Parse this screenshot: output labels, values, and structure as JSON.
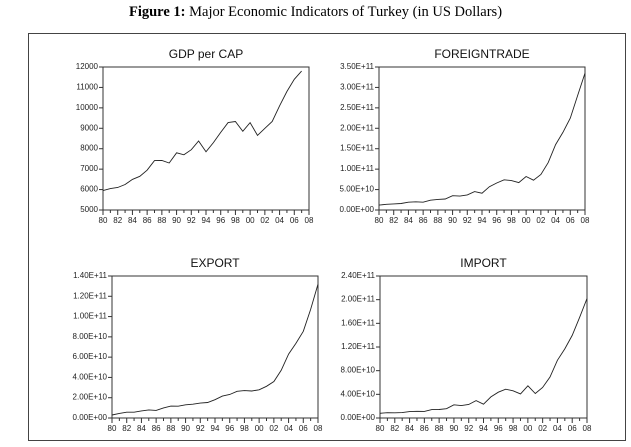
{
  "figure": {
    "label": "Figure 1:",
    "title": " Major Economic Indicators of Turkey (in US Dollars)"
  },
  "chart_data": [
    {
      "type": "line",
      "title": "GDP per CAP",
      "x": [
        1980,
        1981,
        1982,
        1983,
        1984,
        1985,
        1986,
        1987,
        1988,
        1989,
        1990,
        1991,
        1992,
        1993,
        1994,
        1995,
        1996,
        1997,
        1998,
        1999,
        2000,
        2001,
        2002,
        2003,
        2004,
        2005,
        2006,
        2007
      ],
      "values": [
        5950,
        6050,
        6100,
        6250,
        6500,
        6650,
        6950,
        7420,
        7430,
        7300,
        7800,
        7700,
        7950,
        8380,
        7850,
        8300,
        8800,
        9280,
        9330,
        8850,
        9280,
        8650,
        9000,
        9330,
        10100,
        10800,
        11400,
        11800
      ],
      "xlim": [
        1980,
        2008
      ],
      "ylim": [
        5000,
        12000
      ],
      "yticks": [
        5000,
        6000,
        7000,
        8000,
        9000,
        10000,
        11000,
        12000
      ],
      "ytick_labels": [
        "5000",
        "6000",
        "7000",
        "8000",
        "9000",
        "10000",
        "11000",
        "12000"
      ],
      "xtick_labels": [
        "80",
        "82",
        "84",
        "86",
        "88",
        "90",
        "92",
        "94",
        "96",
        "98",
        "00",
        "02",
        "04",
        "06",
        "08"
      ],
      "grid": false
    },
    {
      "type": "line",
      "title": "FOREIGNTRADE",
      "x": [
        1980,
        1981,
        1982,
        1983,
        1984,
        1985,
        1986,
        1987,
        1988,
        1989,
        1990,
        1991,
        1992,
        1993,
        1994,
        1995,
        1996,
        1997,
        1998,
        1999,
        2000,
        2001,
        2002,
        2003,
        2004,
        2005,
        2006,
        2007,
        2008
      ],
      "values": [
        12000000000.0,
        14000000000.0,
        15000000000.0,
        16000000000.0,
        19000000000.0,
        20000000000.0,
        19000000000.0,
        24000000000.0,
        26000000000.0,
        27000000000.0,
        35000000000.0,
        34000000000.0,
        37000000000.0,
        45000000000.0,
        41000000000.0,
        57000000000.0,
        66000000000.0,
        74000000000.0,
        72000000000.0,
        67000000000.0,
        82000000000.0,
        73000000000.0,
        87000000000.0,
        116000000000.0,
        160000000000.0,
        190000000000.0,
        225000000000.0,
        280000000000.0,
        335000000000.0
      ],
      "xlim": [
        1980,
        2008
      ],
      "ylim": [
        0,
        350000000000.0
      ],
      "yticks": [
        0,
        50000000000.0,
        100000000000.0,
        150000000000.0,
        200000000000.0,
        250000000000.0,
        300000000000.0,
        350000000000.0
      ],
      "ytick_labels": [
        "0.00E+00",
        "5.00E+10",
        "1.00E+11",
        "1.50E+11",
        "2.00E+11",
        "2.50E+11",
        "3.00E+11",
        "3.50E+11"
      ],
      "xtick_labels": [
        "80",
        "82",
        "84",
        "86",
        "88",
        "90",
        "92",
        "94",
        "96",
        "98",
        "00",
        "02",
        "04",
        "06",
        "08"
      ],
      "grid": false
    },
    {
      "type": "line",
      "title": "EXPORT",
      "x": [
        1980,
        1981,
        1982,
        1983,
        1984,
        1985,
        1986,
        1987,
        1988,
        1989,
        1990,
        1991,
        1992,
        1993,
        1994,
        1995,
        1996,
        1997,
        1998,
        1999,
        2000,
        2001,
        2002,
        2003,
        2004,
        2005,
        2006,
        2007,
        2008
      ],
      "values": [
        3000000000.0,
        4500000000.0,
        5700000000.0,
        5700000000.0,
        7000000000.0,
        8000000000.0,
        7500000000.0,
        10000000000.0,
        11700000000.0,
        11600000000.0,
        13000000000.0,
        13600000000.0,
        14700000000.0,
        15300000000.0,
        18000000000.0,
        21600000000.0,
        23200000000.0,
        26300000000.0,
        27000000000.0,
        26600000000.0,
        27800000000.0,
        31300000000.0,
        36000000000.0,
        47000000000.0,
        63000000000.0,
        73500000000.0,
        85500000000.0,
        107000000000.0,
        132000000000.0
      ],
      "xlim": [
        1980,
        2008
      ],
      "ylim": [
        0,
        140000000000.0
      ],
      "yticks": [
        0,
        20000000000.0,
        40000000000.0,
        60000000000.0,
        80000000000.0,
        100000000000.0,
        120000000000.0,
        140000000000.0
      ],
      "ytick_labels": [
        "0.00E+00",
        "2.00E+10",
        "4.00E+10",
        "6.00E+10",
        "8.00E+10",
        "1.00E+11",
        "1.20E+11",
        "1.40E+11"
      ],
      "xtick_labels": [
        "80",
        "82",
        "84",
        "86",
        "88",
        "90",
        "92",
        "94",
        "96",
        "98",
        "00",
        "02",
        "04",
        "06",
        "08"
      ],
      "grid": false
    },
    {
      "type": "line",
      "title": "IMPORT",
      "x": [
        1980,
        1981,
        1982,
        1983,
        1984,
        1985,
        1986,
        1987,
        1988,
        1989,
        1990,
        1991,
        1992,
        1993,
        1994,
        1995,
        1996,
        1997,
        1998,
        1999,
        2000,
        2001,
        2002,
        2003,
        2004,
        2005,
        2006,
        2007,
        2008
      ],
      "values": [
        7900000000.0,
        8900000000.0,
        8800000000.0,
        9200000000.0,
        10800000000.0,
        11300000000.0,
        11100000000.0,
        14200000000.0,
        14300000000.0,
        15800000000.0,
        22300000000.0,
        21000000000.0,
        22900000000.0,
        29400000000.0,
        23300000000.0,
        35700000000.0,
        43600000000.0,
        48600000000.0,
        45900000000.0,
        40700000000.0,
        54500000000.0,
        41400000000.0,
        51600000000.0,
        69300000000.0,
        97500000000.0,
        116800000000.0,
        139600000000.0,
        170000000000.0,
        202000000000.0
      ],
      "xlim": [
        1980,
        2008
      ],
      "ylim": [
        0,
        240000000000.0
      ],
      "yticks": [
        0,
        40000000000.0,
        80000000000.0,
        120000000000.0,
        160000000000.0,
        200000000000.0,
        240000000000.0
      ],
      "ytick_labels": [
        "0.00E+00",
        "4.00E+10",
        "8.00E+10",
        "1.20E+11",
        "1.60E+11",
        "2.00E+11",
        "2.40E+11"
      ],
      "xtick_labels": [
        "80",
        "82",
        "84",
        "86",
        "88",
        "90",
        "92",
        "94",
        "96",
        "98",
        "00",
        "02",
        "04",
        "06",
        "08"
      ],
      "grid": false
    }
  ]
}
